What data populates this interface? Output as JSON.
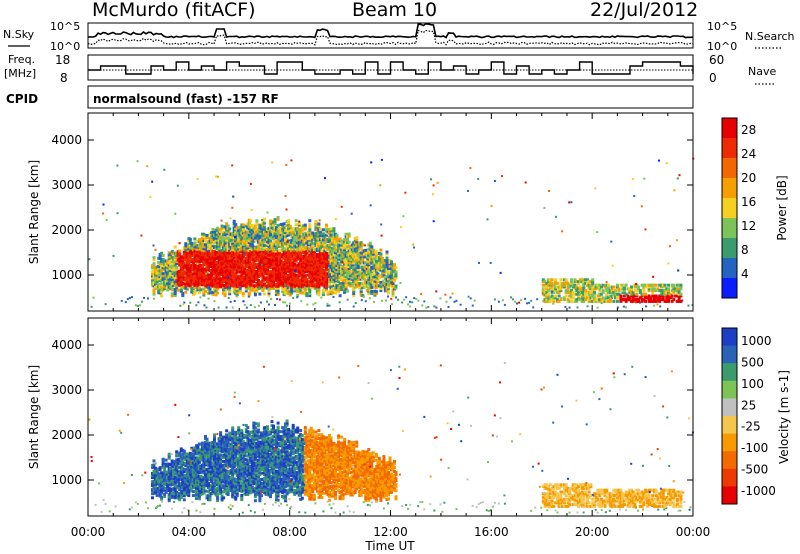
{
  "header": {
    "station": "McMurdo (fitACF)",
    "beam": "Beam 10",
    "date": "22/Jul/2012"
  },
  "noise_panel": {
    "left_label": "N.Sky",
    "right_label": "N.Search",
    "y_ticks": [
      "10^5",
      "10^0"
    ]
  },
  "freq_panel": {
    "left_label_1": "Freq.",
    "left_label_2": "[MHz]",
    "left_ticks": [
      "18",
      "8"
    ],
    "right_label": "Nave",
    "right_ticks": [
      "60",
      "0"
    ]
  },
  "cpid": {
    "label": "CPID",
    "text": "normalsound (fast) -157 RF"
  },
  "colors": {
    "power_scale": [
      "#0a1eff",
      "#2563c2",
      "#3a9c6c",
      "#7cc35a",
      "#f5d020",
      "#f5a000",
      "#f26800",
      "#ee2a00",
      "#e60000"
    ],
    "velocity_scale": [
      "#e60000",
      "#ee3a00",
      "#f26a00",
      "#f79a00",
      "#f5c64e",
      "#c0c0c0",
      "#7dc456",
      "#3a9c6c",
      "#2a62b8",
      "#1c3fc4"
    ]
  },
  "chart_data": [
    {
      "type": "heatmap",
      "title": "",
      "xlabel": "Time UT",
      "ylabel": "Slant Range [km]",
      "xlim": [
        "00:00",
        "24:00"
      ],
      "ylim": [
        200,
        4600
      ],
      "x_ticks": [
        "00:00",
        "04:00",
        "08:00",
        "12:00",
        "16:00",
        "20:00",
        "00:00"
      ],
      "y_ticks": [
        "1000",
        "2000",
        "3000",
        "4000"
      ],
      "colorbar": {
        "label": "Power [dB]",
        "ticks": [
          "4",
          "8",
          "12",
          "16",
          "20",
          "24",
          "28"
        ],
        "range": [
          0,
          30
        ]
      }
    },
    {
      "type": "heatmap",
      "title": "",
      "xlabel": "Time UT",
      "ylabel": "Slant Range [km]",
      "xlim": [
        "00:00",
        "24:00"
      ],
      "ylim": [
        200,
        4600
      ],
      "x_ticks": [
        "00:00",
        "04:00",
        "08:00",
        "12:00",
        "16:00",
        "20:00",
        "00:00"
      ],
      "y_ticks": [
        "1000",
        "2000",
        "3000",
        "4000"
      ],
      "colorbar": {
        "label": "Velocity [m s-1]",
        "ticks": [
          "1000",
          "500",
          "100",
          "25",
          "-25",
          "-100",
          "-500",
          "-1000"
        ]
      }
    }
  ]
}
